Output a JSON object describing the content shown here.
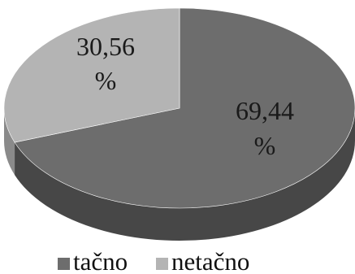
{
  "chart_data": {
    "type": "pie",
    "style": "3d",
    "categories": [
      "tačno",
      "netačno"
    ],
    "values": [
      69.44,
      30.56
    ],
    "data_labels": [
      {
        "line1": "69,44",
        "line2": "%"
      },
      {
        "line1": "30,56",
        "line2": "%"
      }
    ],
    "colors": [
      "#6d6d6d",
      "#b4b4b4"
    ],
    "side_colors": [
      "#474747",
      "#8a8a8a"
    ],
    "legend": {
      "position": "bottom"
    },
    "title": ""
  }
}
